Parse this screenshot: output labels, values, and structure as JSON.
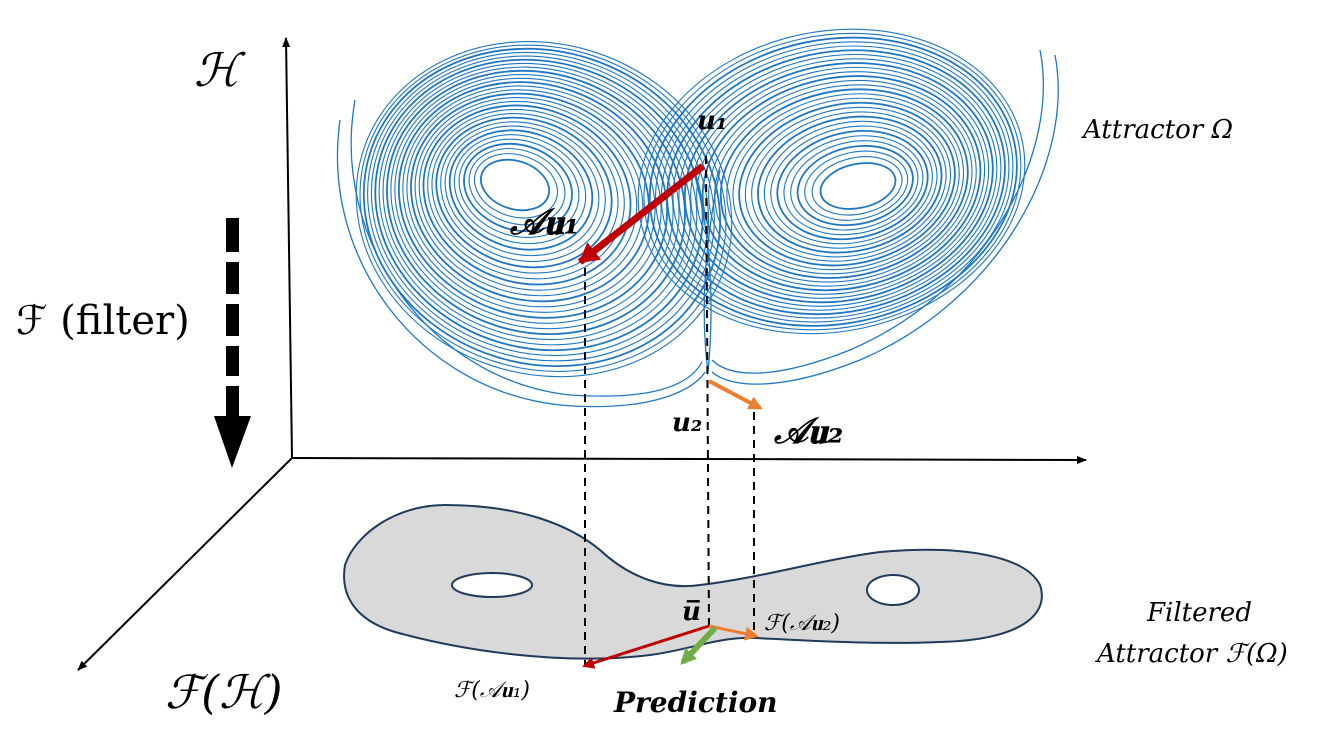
{
  "axes": {
    "hilbert_label": "ℋ",
    "filtered_label": "ℱ(ℋ)"
  },
  "filter_arrow": {
    "label": "ℱ (filter)"
  },
  "attractor": {
    "label": "Attractor Ω",
    "color": "#1f77c4"
  },
  "filtered_attractor": {
    "label_line1": "Filtered",
    "label_line2": "Attractor ℱ(Ω)",
    "fill": "#d9d9d9",
    "stroke": "#1f3a5a"
  },
  "points": {
    "u1": "u₁",
    "u2": "u₂",
    "ubar": "u̅",
    "Au1": "𝒜𝐮₁",
    "Au2": "𝒜𝐮₂",
    "FAu1": "ℱ(𝒜𝐮₁)",
    "FAu2": "ℱ(𝒜𝐮₂)"
  },
  "prediction": {
    "label": "Prediction",
    "color": "#27a745"
  },
  "arrow_colors": {
    "red": "#c00000",
    "orange": "#ed7d31",
    "green": "#70ad47"
  }
}
